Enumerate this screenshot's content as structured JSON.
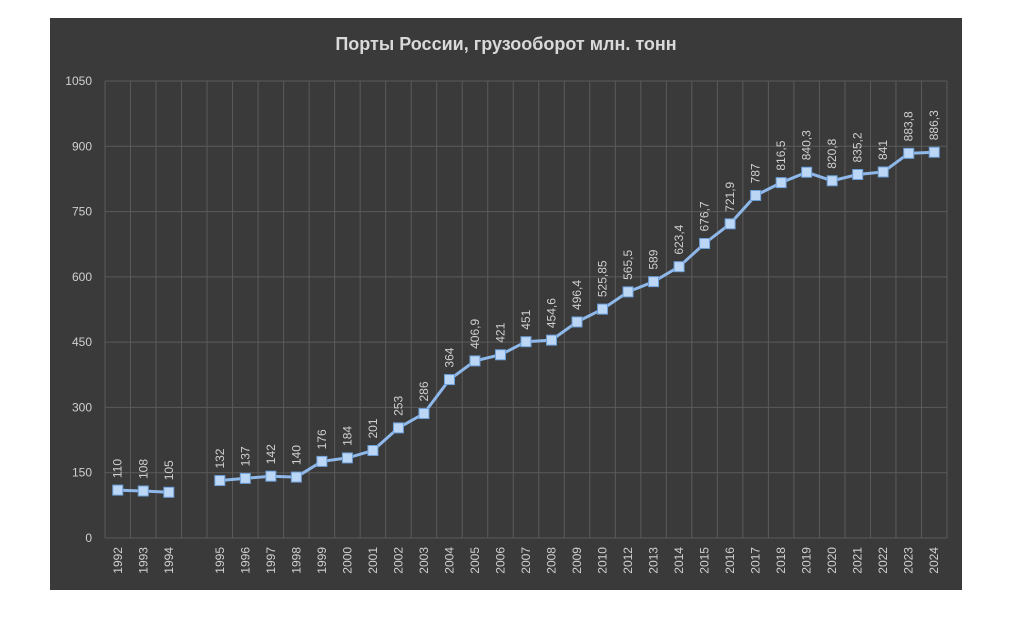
{
  "chart_data": {
    "type": "line",
    "title": "Порты России, грузооборот млн. тонн",
    "xlabel": "",
    "ylabel": "",
    "ylim": [
      0,
      1050
    ],
    "yticks": [
      "0",
      "150",
      "300",
      "450",
      "600",
      "750",
      "900",
      "1050"
    ],
    "grid": true,
    "legend": "none",
    "colors": {
      "line": "#8fb8ea",
      "marker": "#bcd6f5",
      "background": "#3a3a3a",
      "grid": "#5b5b5b",
      "text": "#d0d0d0"
    },
    "categories": [
      "1992",
      "1993",
      "1994",
      "",
      "1995",
      "1996",
      "1997",
      "1998",
      "1999",
      "2000",
      "2001",
      "2002",
      "2003",
      "2004",
      "2005",
      "2006",
      "2007",
      "2008",
      "2009",
      "2010",
      "2012",
      "2013",
      "2014",
      "2015",
      "2016",
      "2017",
      "2018",
      "2019",
      "2020",
      "2021",
      "2022",
      "2023",
      "2024"
    ],
    "values": [
      110,
      108,
      105,
      null,
      132,
      137,
      142,
      140,
      176,
      184,
      201,
      253,
      286,
      364,
      406.9,
      421,
      451,
      454.6,
      496.4,
      525.85,
      565.5,
      589,
      623.4,
      676.7,
      721.9,
      787,
      816.5,
      840.3,
      820.8,
      835.2,
      841,
      883.8,
      886.3
    ],
    "data_labels": [
      "110",
      "108",
      "105",
      "",
      "132",
      "137",
      "142",
      "140",
      "176",
      "184",
      "201",
      "253",
      "286",
      "364",
      "406,9",
      "421",
      "451",
      "454,6",
      "496,4",
      "525,85",
      "565,5",
      "589",
      "623,4",
      "676,7",
      "721,9",
      "787",
      "816,5",
      "840,3",
      "820,8",
      "835,2",
      "841",
      "883,8",
      "886,3"
    ]
  }
}
